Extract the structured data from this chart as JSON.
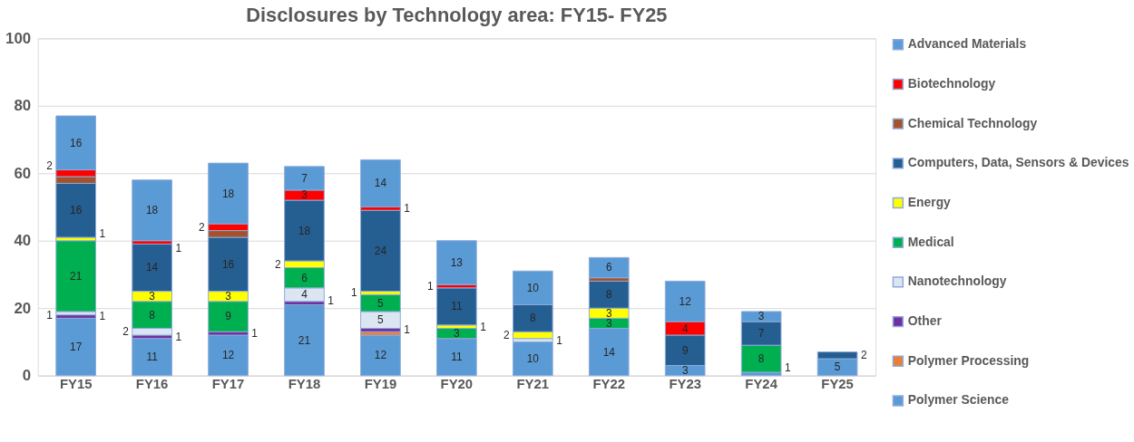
{
  "chart_data": {
    "type": "bar",
    "stacked": true,
    "title": "Disclosures by Technology area: FY15- FY25",
    "categories": [
      "FY15",
      "FY16",
      "FY17",
      "FY18",
      "FY19",
      "FY20",
      "FY21",
      "FY22",
      "FY23",
      "FY24",
      "FY25"
    ],
    "ylim": [
      0,
      100
    ],
    "yticks": [
      0,
      20,
      40,
      60,
      80,
      100
    ],
    "grid": "y",
    "legend": "right",
    "series": [
      {
        "name": "Polymer Science",
        "color": "#5b9bd5",
        "values": [
          17,
          11,
          12,
          21,
          12,
          11,
          10,
          14,
          3,
          1,
          5
        ],
        "value_labels": [
          "17",
          "11",
          "12",
          "21",
          "12",
          "11",
          "10",
          "14",
          "3",
          "1",
          "5"
        ]
      },
      {
        "name": "Polymer Processing",
        "color": "#ed7d31",
        "values": [
          null,
          null,
          null,
          null,
          1,
          null,
          null,
          null,
          null,
          null,
          null
        ],
        "value_labels": [
          null,
          null,
          null,
          null,
          null,
          null,
          null,
          null,
          null,
          null,
          null
        ]
      },
      {
        "name": "Other",
        "color": "#7030a0",
        "values": [
          1,
          1,
          1,
          1,
          1,
          null,
          null,
          null,
          null,
          null,
          null
        ],
        "value_labels": [
          "1",
          "1",
          "1",
          "1",
          "1",
          null,
          null,
          null,
          null,
          null,
          null
        ]
      },
      {
        "name": "Nanotechnology",
        "color": "#dce6f2",
        "values": [
          1,
          2,
          null,
          4,
          5,
          null,
          1,
          null,
          null,
          null,
          null
        ],
        "value_labels": [
          "1",
          "2",
          null,
          "4",
          "5",
          null,
          "1",
          null,
          null,
          null,
          null
        ]
      },
      {
        "name": "Medical",
        "color": "#00b050",
        "values": [
          21,
          8,
          9,
          6,
          5,
          3,
          null,
          3,
          null,
          8,
          null
        ],
        "value_labels": [
          "21",
          "8",
          "9",
          "6",
          "5",
          "3",
          null,
          "3",
          null,
          "8",
          null
        ]
      },
      {
        "name": "Energy",
        "color": "#ffff00",
        "values": [
          1,
          3,
          3,
          2,
          1,
          1,
          2,
          3,
          null,
          null,
          null
        ],
        "value_labels": [
          "1",
          "3",
          "3",
          "2",
          "1",
          "1",
          "2",
          "3",
          null,
          null,
          null
        ]
      },
      {
        "name": "Computers, Data, Sensors & Devices",
        "color": "#255e91",
        "values": [
          16,
          14,
          16,
          18,
          24,
          11,
          8,
          8,
          9,
          7,
          2
        ],
        "value_labels": [
          "16",
          "14",
          "16",
          "18",
          "24",
          "11",
          "8",
          "8",
          "9",
          "7",
          "2"
        ]
      },
      {
        "name": "Chemical Technology",
        "color": "#a5522a",
        "values": [
          2,
          null,
          2,
          null,
          null,
          null,
          null,
          1,
          null,
          null,
          null
        ],
        "value_labels": [
          null,
          null,
          null,
          null,
          null,
          null,
          null,
          null,
          null,
          null,
          null
        ]
      },
      {
        "name": "Biotechnology",
        "color": "#ff0000",
        "values": [
          2,
          1,
          2,
          3,
          1,
          1,
          null,
          null,
          4,
          null,
          null
        ],
        "value_labels": [
          "2",
          "1",
          "2",
          "3",
          "1",
          "1",
          null,
          null,
          "4",
          null,
          null
        ]
      },
      {
        "name": "Advanced Materials",
        "color": "#5b9bd5",
        "values": [
          16,
          18,
          18,
          7,
          14,
          13,
          10,
          6,
          12,
          3,
          null
        ],
        "value_labels": [
          "16",
          "18",
          "18",
          "7",
          "14",
          "13",
          "10",
          "6",
          "12",
          "3",
          null
        ]
      }
    ]
  }
}
